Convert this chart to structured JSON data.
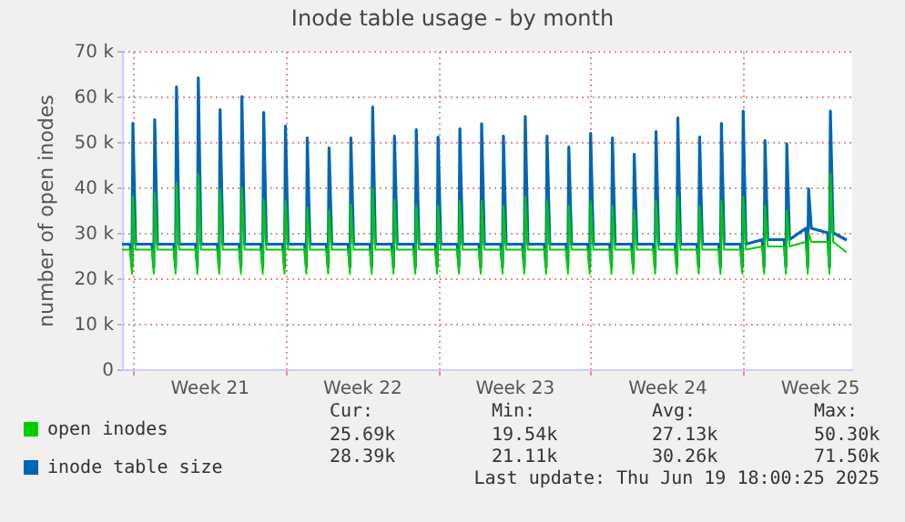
{
  "chart_data": {
    "type": "line",
    "title": "Inode table usage - by month",
    "ylabel": "number of open inodes",
    "xlim": [
      "2025-05-17T12:00",
      "2025-06-20T00:00"
    ],
    "xticks": [
      {
        "value": "2025-05-18T00:00",
        "label": null
      },
      {
        "value": "2025-05-21T12:00",
        "label": "Week 21"
      },
      {
        "value": "2025-05-25T00:00",
        "label": null
      },
      {
        "value": "2025-05-28T12:00",
        "label": "Week 22"
      },
      {
        "value": "2025-06-01T00:00",
        "label": null
      },
      {
        "value": "2025-06-04T12:00",
        "label": "Week 23"
      },
      {
        "value": "2025-06-08T00:00",
        "label": null
      },
      {
        "value": "2025-06-11T12:00",
        "label": "Week 24"
      },
      {
        "value": "2025-06-15T00:00",
        "label": null
      },
      {
        "value": "2025-06-18T12:00",
        "label": "Week 25"
      }
    ],
    "ylim": [
      0,
      70000
    ],
    "yticks": [
      0,
      {
        "value": 10000,
        "label": "10 k"
      },
      {
        "value": 20000,
        "label": "20 k"
      },
      {
        "value": 30000,
        "label": "30 k"
      },
      {
        "value": 40000,
        "label": "40 k"
      },
      {
        "value": 50000,
        "label": "50 k"
      },
      {
        "value": 60000,
        "label": "60 k"
      },
      {
        "value": 70000,
        "label": "70 k"
      }
    ],
    "grid": true,
    "legend": "bottom left",
    "x": [
      "2025-05-17T12:00",
      "2025-05-17T21:00",
      "2025-05-17T23:00",
      "2025-05-18T00:00",
      "2025-05-18T03:00",
      "2025-05-18T21:00",
      "2025-05-18T23:00",
      "2025-05-19T00:00",
      "2025-05-19T03:00",
      "2025-05-19T21:00",
      "2025-05-19T23:00",
      "2025-05-20T00:00",
      "2025-05-20T03:00",
      "2025-05-20T21:00",
      "2025-05-20T23:00",
      "2025-05-21T00:00",
      "2025-05-21T03:00",
      "2025-05-21T21:00",
      "2025-05-21T23:00",
      "2025-05-22T00:00",
      "2025-05-22T03:00",
      "2025-05-22T21:00",
      "2025-05-22T23:00",
      "2025-05-23T00:00",
      "2025-05-23T03:00",
      "2025-05-23T21:00",
      "2025-05-23T23:00",
      "2025-05-24T00:00",
      "2025-05-24T03:00",
      "2025-05-24T21:00",
      "2025-05-24T23:00",
      "2025-05-25T00:00",
      "2025-05-25T03:00",
      "2025-05-25T21:00",
      "2025-05-25T23:00",
      "2025-05-26T00:00",
      "2025-05-26T03:00",
      "2025-05-26T21:00",
      "2025-05-26T23:00",
      "2025-05-27T00:00",
      "2025-05-27T03:00",
      "2025-05-27T21:00",
      "2025-05-27T23:00",
      "2025-05-28T00:00",
      "2025-05-28T03:00",
      "2025-05-28T21:00",
      "2025-05-28T23:00",
      "2025-05-29T00:00",
      "2025-05-29T03:00",
      "2025-05-29T21:00",
      "2025-05-29T23:00",
      "2025-05-30T00:00",
      "2025-05-30T03:00",
      "2025-05-30T21:00",
      "2025-05-30T23:00",
      "2025-05-31T00:00",
      "2025-05-31T03:00",
      "2025-05-31T21:00",
      "2025-05-31T23:00",
      "2025-06-01T00:00",
      "2025-06-01T03:00",
      "2025-06-01T21:00",
      "2025-06-01T23:00",
      "2025-06-02T00:00",
      "2025-06-02T03:00",
      "2025-06-02T21:00",
      "2025-06-02T23:00",
      "2025-06-03T00:00",
      "2025-06-03T03:00",
      "2025-06-03T21:00",
      "2025-06-03T23:00",
      "2025-06-04T00:00",
      "2025-06-04T03:00",
      "2025-06-04T21:00",
      "2025-06-04T23:00",
      "2025-06-05T00:00",
      "2025-06-05T03:00",
      "2025-06-05T21:00",
      "2025-06-05T23:00",
      "2025-06-06T00:00",
      "2025-06-06T03:00",
      "2025-06-06T21:00",
      "2025-06-06T23:00",
      "2025-06-07T00:00",
      "2025-06-07T03:00",
      "2025-06-07T21:00",
      "2025-06-07T23:00",
      "2025-06-08T00:00",
      "2025-06-08T03:00",
      "2025-06-08T21:00",
      "2025-06-08T23:00",
      "2025-06-09T00:00",
      "2025-06-09T03:00",
      "2025-06-09T21:00",
      "2025-06-09T23:00",
      "2025-06-10T00:00",
      "2025-06-10T03:00",
      "2025-06-10T21:00",
      "2025-06-10T23:00",
      "2025-06-11T00:00",
      "2025-06-11T03:00",
      "2025-06-11T21:00",
      "2025-06-11T23:00",
      "2025-06-12T00:00",
      "2025-06-12T03:00",
      "2025-06-12T21:00",
      "2025-06-12T23:00",
      "2025-06-13T00:00",
      "2025-06-13T03:00",
      "2025-06-13T21:00",
      "2025-06-13T23:00",
      "2025-06-14T00:00",
      "2025-06-14T03:00",
      "2025-06-14T21:00",
      "2025-06-14T23:00",
      "2025-06-15T00:00",
      "2025-06-15T03:00",
      "2025-06-15T21:00",
      "2025-06-15T23:00",
      "2025-06-16T00:00",
      "2025-06-16T03:00",
      "2025-06-16T21:00",
      "2025-06-16T23:00",
      "2025-06-17T00:00",
      "2025-06-17T03:00",
      "2025-06-17T21:00",
      "2025-06-17T23:00",
      "2025-06-18T00:00",
      "2025-06-18T03:00",
      "2025-06-18T21:00",
      "2025-06-18T23:00",
      "2025-06-19T00:00",
      "2025-06-19T03:00",
      "2025-06-19T18:00"
    ],
    "series": [
      {
        "name": "open inodes",
        "color": "#00cc00",
        "values": [
          26300,
          26300,
          21000,
          38000,
          26300,
          26300,
          21000,
          38900,
          26300,
          26300,
          21000,
          41000,
          26300,
          26300,
          21000,
          42900,
          26300,
          26300,
          21000,
          39500,
          26300,
          26300,
          21000,
          40000,
          26300,
          26300,
          21000,
          37300,
          26300,
          26300,
          21000,
          37000,
          26300,
          26300,
          21000,
          35600,
          26300,
          26300,
          21000,
          34900,
          26300,
          26300,
          21000,
          36300,
          26300,
          26300,
          21000,
          39700,
          26300,
          26300,
          21000,
          37300,
          26300,
          26300,
          21000,
          36000,
          26300,
          26300,
          21000,
          36000,
          26300,
          26300,
          21000,
          37000,
          26300,
          26300,
          21000,
          37000,
          26300,
          26300,
          21000,
          36000,
          26300,
          26300,
          21000,
          38000,
          26300,
          26300,
          21000,
          37000,
          26300,
          26300,
          21000,
          36000,
          26300,
          26300,
          21000,
          37000,
          26300,
          26300,
          21000,
          36000,
          26300,
          26300,
          21000,
          35000,
          26300,
          26300,
          21000,
          37000,
          26300,
          26300,
          21000,
          38000,
          26300,
          26300,
          21000,
          36000,
          26300,
          26300,
          21000,
          37000,
          26300,
          26300,
          21000,
          38000,
          26300,
          27000,
          21000,
          36000,
          27000,
          27000,
          21000,
          35000,
          27000,
          28000,
          21000,
          30000,
          28000,
          28000,
          21000,
          43000,
          28000,
          25700
        ]
      },
      {
        "name": "inode table size",
        "color": "#0066b3",
        "values": [
          27500,
          27500,
          22500,
          54100,
          27500,
          27500,
          22500,
          54900,
          27500,
          27500,
          22500,
          62100,
          27500,
          27500,
          22500,
          64100,
          27500,
          27500,
          22500,
          57100,
          27500,
          27500,
          22500,
          60000,
          27500,
          27500,
          22500,
          56500,
          27500,
          27500,
          22500,
          53500,
          27500,
          27500,
          22500,
          50900,
          27500,
          27500,
          22500,
          48700,
          27500,
          27500,
          22500,
          50900,
          27500,
          27500,
          22500,
          57700,
          27500,
          27500,
          22500,
          51300,
          27500,
          27500,
          22500,
          52700,
          27500,
          27500,
          22500,
          51100,
          27500,
          27500,
          22500,
          52900,
          27500,
          27500,
          22500,
          54000,
          27500,
          27500,
          22500,
          51300,
          27500,
          27500,
          22500,
          55600,
          27500,
          27500,
          22500,
          51300,
          27500,
          27500,
          22500,
          48900,
          27500,
          27500,
          22500,
          51900,
          27500,
          27500,
          22500,
          50900,
          27500,
          27500,
          22500,
          47300,
          27500,
          27500,
          22500,
          52300,
          27500,
          27500,
          22500,
          55300,
          27500,
          27500,
          22500,
          51100,
          27500,
          27500,
          22500,
          54100,
          27500,
          27500,
          22500,
          56800,
          27500,
          28500,
          22500,
          50300,
          28500,
          28500,
          22500,
          49600,
          28500,
          31000,
          22500,
          39700,
          31000,
          30000,
          22500,
          56800,
          30000,
          28400
        ]
      }
    ],
    "annotations": [
      "Cur:",
      "Min:",
      "Avg:",
      "Max:",
      "25.69k",
      "19.54k",
      "27.13k",
      "50.30k",
      "28.39k",
      "21.11k",
      "30.26k",
      "71.50k",
      "Last update: Thu Jun 19 18:00:25 2025"
    ]
  }
}
